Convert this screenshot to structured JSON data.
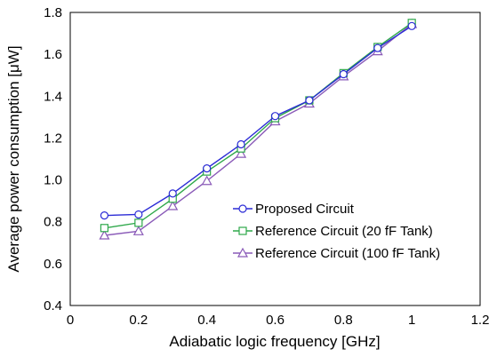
{
  "chart_data": {
    "type": "line",
    "xlabel": "Adiabatic logic frequency [GHz]",
    "ylabel": "Average power consumption [μW]",
    "xlim": [
      0,
      1.2
    ],
    "ylim": [
      0.4,
      1.8
    ],
    "x_ticks": [
      "0",
      "0.2",
      "0.4",
      "0.6",
      "0.8",
      "1",
      "1.2"
    ],
    "y_ticks": [
      "0.4",
      "0.6",
      "0.8",
      "1.0",
      "1.2",
      "1.4",
      "1.6",
      "1.8"
    ],
    "grid": false,
    "legend_position": "right",
    "x": [
      0.1,
      0.2,
      0.3,
      0.4,
      0.5,
      0.6,
      0.7,
      0.8,
      0.9,
      1.0
    ],
    "series": [
      {
        "name": "Proposed Circuit",
        "marker": "circle",
        "color": "#2b2bd6",
        "values": [
          0.83,
          0.835,
          0.935,
          1.055,
          1.17,
          1.305,
          1.38,
          1.505,
          1.63,
          1.735
        ]
      },
      {
        "name": "Reference Circuit (20 fF Tank)",
        "marker": "square",
        "color": "#2ea84a",
        "values": [
          0.77,
          0.795,
          0.91,
          1.04,
          1.15,
          1.295,
          1.38,
          1.51,
          1.635,
          1.75
        ]
      },
      {
        "name": "Reference Circuit (100 fF Tank)",
        "marker": "triangle",
        "color": "#8a5ab8",
        "values": [
          0.735,
          0.755,
          0.875,
          0.995,
          1.125,
          1.28,
          1.365,
          1.495,
          1.615,
          1.745
        ]
      }
    ]
  }
}
